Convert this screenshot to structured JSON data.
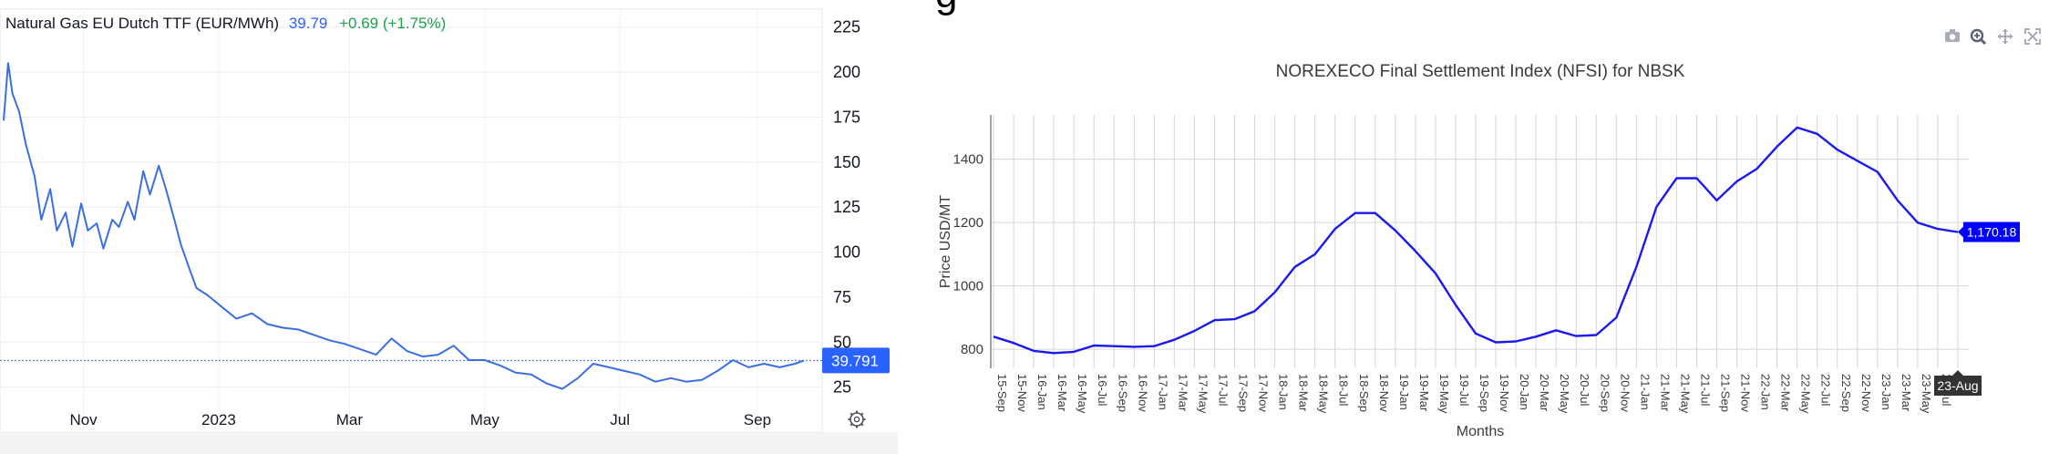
{
  "left_chart": {
    "title_name": "Natural Gas EU Dutch TTF (EUR/MWh)",
    "title_price": "39.79",
    "title_change": "+0.69 (+1.75%)",
    "last_price_label": "39.791",
    "colors": {
      "line": "#3b6fe0",
      "price_text": "#2962ff",
      "change_text": "#1aa34a",
      "badge": "#2962ff"
    },
    "settings_icon": "gear-icon"
  },
  "right_chart": {
    "title": "NOREXECO Final Settlement Index (NFSI) for NBSK",
    "last_value_label": "1,170.18",
    "hover_label": "23-Aug",
    "toolbar_icons": [
      "camera-icon",
      "zoom-icon",
      "pan-icon",
      "autoscale-icon"
    ],
    "colors": {
      "line": "#1a1af0",
      "badge": "#0000ff"
    }
  },
  "chart_data": [
    {
      "type": "line",
      "title": "Natural Gas EU Dutch TTF (EUR/MWh)",
      "xlabel": "",
      "ylabel": "",
      "x_tick_labels": [
        "Nov",
        "2023",
        "Mar",
        "May",
        "Jul",
        "Sep"
      ],
      "y_tick_labels": [
        "225",
        "200",
        "175",
        "150",
        "125",
        "100",
        "75",
        "50",
        "25"
      ],
      "ylim": [
        0,
        235
      ],
      "grid": true,
      "axis_position": "right",
      "last_value": 39.791,
      "series": [
        {
          "x": [
            "2022-09-26",
            "2022-09-28",
            "2022-09-30",
            "2022-10-03",
            "2022-10-06",
            "2022-10-10",
            "2022-10-13",
            "2022-10-17",
            "2022-10-20",
            "2022-10-24",
            "2022-10-27",
            "2022-10-31",
            "2022-11-03",
            "2022-11-07",
            "2022-11-10",
            "2022-11-14",
            "2022-11-17",
            "2022-11-21",
            "2022-11-24",
            "2022-11-28",
            "2022-12-01",
            "2022-12-05",
            "2022-12-08",
            "2022-12-12",
            "2022-12-15",
            "2022-12-19",
            "2022-12-22",
            "2022-12-27",
            "2023-01-02",
            "2023-01-09",
            "2023-01-16",
            "2023-01-23",
            "2023-01-30",
            "2023-02-06",
            "2023-02-13",
            "2023-02-20",
            "2023-02-27",
            "2023-03-06",
            "2023-03-13",
            "2023-03-20",
            "2023-03-27",
            "2023-04-03",
            "2023-04-10",
            "2023-04-17",
            "2023-04-24",
            "2023-05-01",
            "2023-05-08",
            "2023-05-15",
            "2023-05-22",
            "2023-05-29",
            "2023-06-05",
            "2023-06-12",
            "2023-06-19",
            "2023-06-26",
            "2023-07-03",
            "2023-07-10",
            "2023-07-17",
            "2023-07-24",
            "2023-07-31",
            "2023-08-07",
            "2023-08-14",
            "2023-08-21",
            "2023-08-28",
            "2023-09-04",
            "2023-09-11",
            "2023-09-18",
            "2023-09-22"
          ],
          "y": [
            173,
            205,
            188,
            178,
            160,
            142,
            118,
            135,
            112,
            122,
            103,
            127,
            112,
            116,
            102,
            118,
            114,
            128,
            118,
            145,
            132,
            148,
            136,
            118,
            104,
            90,
            80,
            76,
            70,
            63,
            66,
            60,
            58,
            57,
            54,
            51,
            49,
            46,
            43,
            52,
            45,
            42,
            43,
            48,
            40,
            40,
            37,
            33,
            32,
            27,
            24,
            30,
            38,
            36,
            34,
            32,
            28,
            30,
            28,
            29,
            34,
            40,
            36,
            38,
            36,
            38,
            39.791
          ]
        }
      ]
    },
    {
      "type": "line",
      "title": "NOREXECO Final Settlement Index (NFSI) for NBSK",
      "xlabel": "Months",
      "ylabel": "Price USD/MT",
      "categories": [
        "15-Sep",
        "15-Nov",
        "16-Jan",
        "16-Mar",
        "16-May",
        "16-Jul",
        "16-Sep",
        "16-Nov",
        "17-Jan",
        "17-Mar",
        "17-May",
        "17-Jul",
        "17-Sep",
        "17-Nov",
        "18-Jan",
        "18-Mar",
        "18-May",
        "18-Jul",
        "18-Sep",
        "18-Nov",
        "19-Jan",
        "19-Mar",
        "19-May",
        "19-Jul",
        "19-Sep",
        "19-Nov",
        "20-Jan",
        "20-Mar",
        "20-May",
        "20-Jul",
        "20-Sep",
        "20-Nov",
        "21-Jan",
        "21-Mar",
        "21-May",
        "21-Jul",
        "21-Sep",
        "21-Nov",
        "22-Jan",
        "22-Mar",
        "22-May",
        "22-Jul",
        "22-Sep",
        "22-Nov",
        "23-Jan",
        "23-Mar",
        "23-May",
        "23-Jul",
        "23-Aug"
      ],
      "y_tick_labels": [
        "800",
        "1000",
        "1200",
        "1400"
      ],
      "ylim": [
        740,
        1540
      ],
      "grid": true,
      "last_value": 1170.18,
      "series": [
        {
          "values": [
            840,
            820,
            795,
            788,
            792,
            812,
            810,
            808,
            810,
            830,
            858,
            892,
            895,
            920,
            980,
            1060,
            1100,
            1180,
            1230,
            1230,
            1175,
            1110,
            1040,
            940,
            850,
            822,
            825,
            840,
            860,
            842,
            845,
            900,
            1060,
            1250,
            1340,
            1340,
            1270,
            1330,
            1370,
            1440,
            1500,
            1480,
            1430,
            1395,
            1360,
            1270,
            1200,
            1180,
            1170.18
          ]
        }
      ]
    }
  ]
}
